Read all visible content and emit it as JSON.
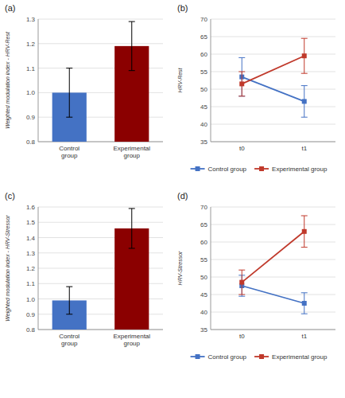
{
  "chart_data": [
    {
      "type": "bar",
      "title": "(a)",
      "categories": [
        "Control\ngroup",
        "Experimental\ngroup"
      ],
      "values": [
        1.0,
        1.19
      ],
      "errors_up": [
        0.1,
        0.1
      ],
      "errors_down": [
        0.1,
        0.1
      ],
      "colors": [
        "#4472C4",
        "#8B0000"
      ],
      "ylabel": "Weighted modulation index - HRV-Rest",
      "ylim": [
        0.8,
        1.3
      ],
      "yticks": [
        0.8,
        0.9,
        {
          "value": 1.0,
          "label": "1.0"
        },
        1.1,
        1.2,
        1.3
      ],
      "grid": true
    },
    {
      "type": "line",
      "title": "(b)",
      "categories": [
        "t0",
        "t1"
      ],
      "series": [
        {
          "name": "Control group",
          "color": "#4472C4",
          "values": [
            53.5,
            46.5
          ],
          "errors": [
            5.5,
            4.5
          ]
        },
        {
          "name": "Experimental group",
          "color": "#C0392B",
          "values": [
            51.5,
            59.5
          ],
          "errors": [
            3.5,
            5.0
          ]
        }
      ],
      "marker": "square",
      "ylabel": "HRV-Rest",
      "ylim": [
        35,
        70
      ],
      "yticks": [
        35,
        40,
        45,
        50,
        55,
        60,
        65,
        70
      ],
      "grid": true,
      "legend": "bottom"
    },
    {
      "type": "bar",
      "title": "(c)",
      "categories": [
        "Control\ngroup",
        "Experimental\ngroup"
      ],
      "values": [
        0.99,
        1.46
      ],
      "errors_up": [
        0.09,
        0.13
      ],
      "errors_down": [
        0.09,
        0.13
      ],
      "colors": [
        "#4472C4",
        "#8B0000"
      ],
      "ylabel": "Weighted modulation index - HRV-Stressor",
      "ylim": [
        0.8,
        1.6
      ],
      "yticks": [
        0.8,
        0.9,
        {
          "value": 1.0,
          "label": "1.0"
        },
        1.1,
        1.2,
        1.3,
        1.4,
        1.5,
        1.6
      ],
      "grid": true
    },
    {
      "type": "line",
      "title": "(d)",
      "categories": [
        "t0",
        "t1"
      ],
      "series": [
        {
          "name": "Control group",
          "color": "#4472C4",
          "values": [
            47.5,
            42.5
          ],
          "errors": [
            3.0,
            3.0
          ]
        },
        {
          "name": "Experimental group",
          "color": "#C0392B",
          "values": [
            48.5,
            63.0
          ],
          "errors": [
            3.5,
            4.5
          ]
        }
      ],
      "marker": "square",
      "ylabel": "HRV-Stressor",
      "ylim": [
        35,
        70
      ],
      "yticks": [
        35,
        40,
        45,
        50,
        55,
        60,
        65,
        70
      ],
      "grid": true,
      "legend": "bottom"
    }
  ]
}
